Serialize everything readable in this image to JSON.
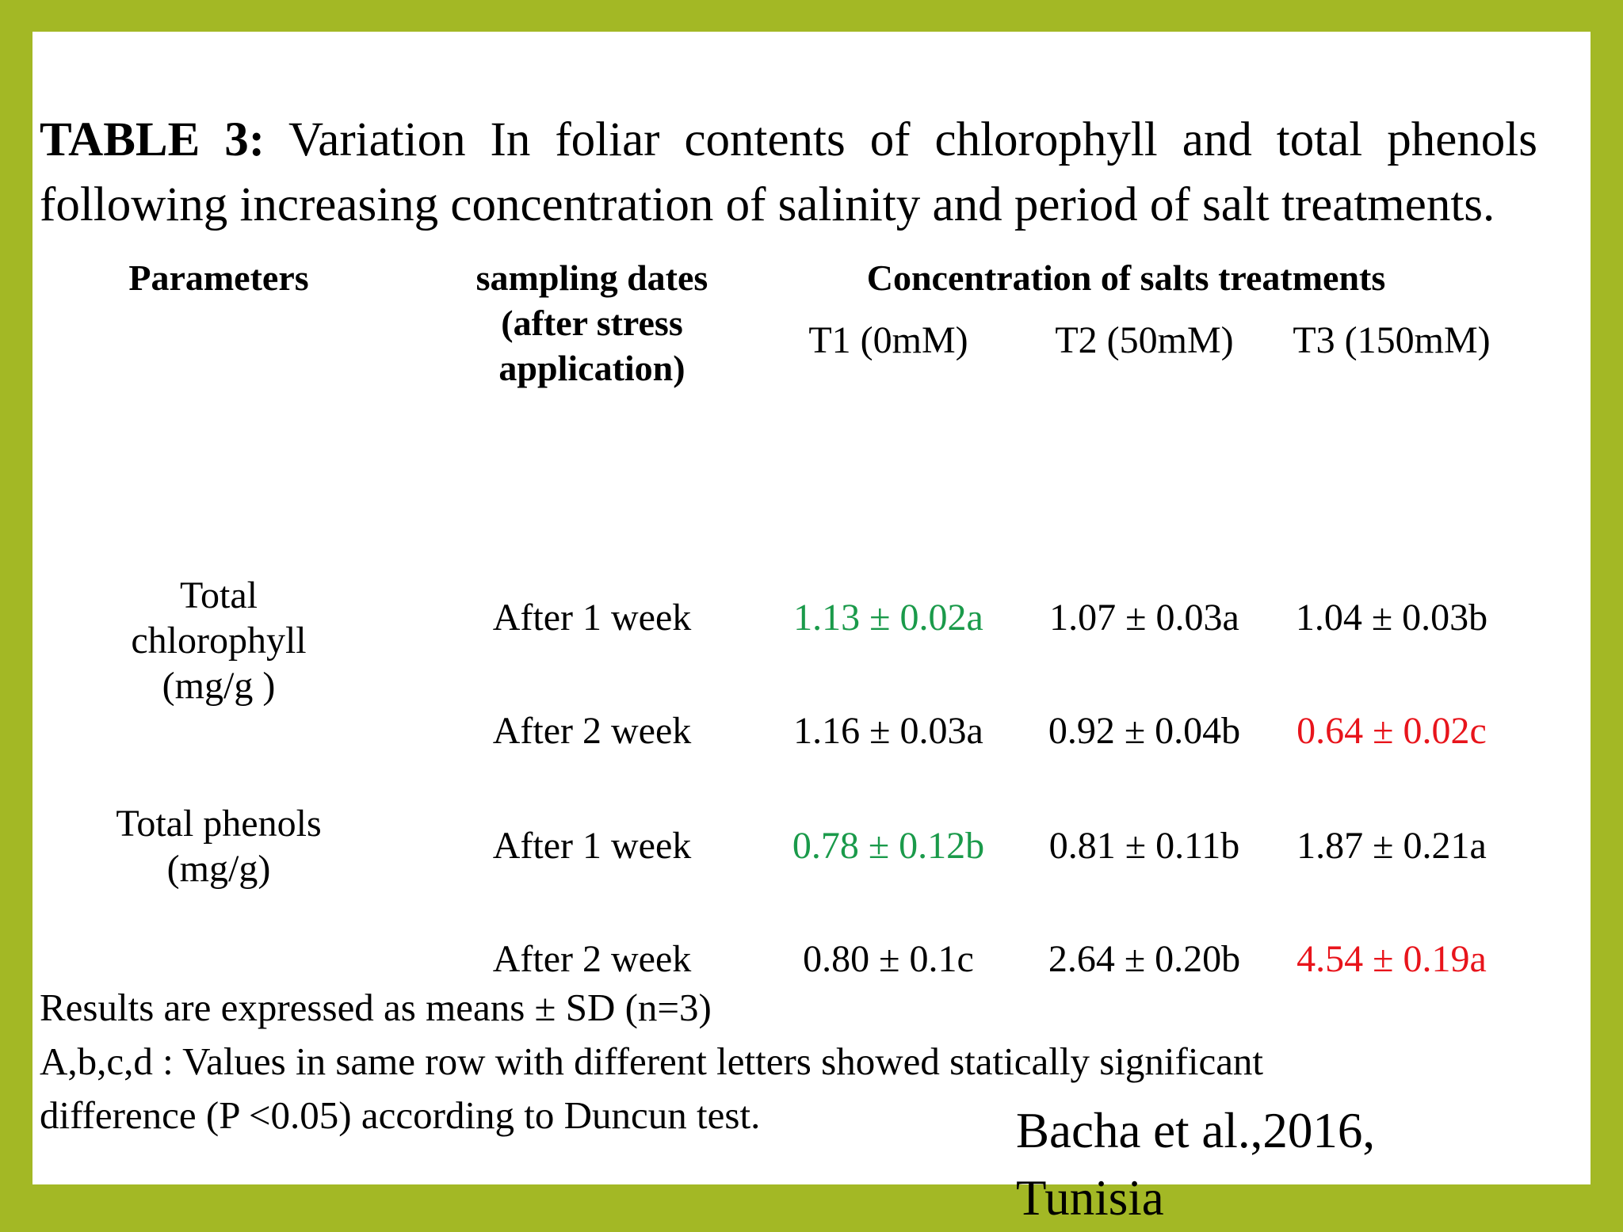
{
  "colors": {
    "frame": "#a3b825",
    "highlight_low": "#1a9a4a",
    "highlight_high": "#e8141b"
  },
  "title": {
    "label": "TABLE 3:",
    "text": " Variation In foliar contents of chlorophyll and total phenols following increasing concentration  of salinity and period of salt treatments."
  },
  "table": {
    "headers": {
      "parameters": "Parameters",
      "sampling_dates": "sampling dates (after stress application)",
      "concentration": "Concentration of salts treatments",
      "treatments": [
        "T1 (0mM)",
        "T2 (50mM)",
        "T3 (150mM)"
      ]
    },
    "groups": [
      {
        "parameter": "Total chlorophyll (mg/g )",
        "rows": [
          {
            "date": "After 1 week",
            "values": [
              "1.13 ± 0.02a",
              "1.07 ± 0.03a",
              "1.04 ± 0.03b"
            ],
            "highlights": [
              "low",
              "",
              ""
            ]
          },
          {
            "date": "After 2 week",
            "values": [
              "1.16 ± 0.03a",
              "0.92 ± 0.04b",
              "0.64 ± 0.02c"
            ],
            "highlights": [
              "",
              "",
              "high"
            ]
          }
        ]
      },
      {
        "parameter": "Total phenols (mg/g)",
        "rows": [
          {
            "date": "After 1 week",
            "values": [
              "0.78 ± 0.12b",
              "0.81 ± 0.11b",
              "1.87 ± 0.21a"
            ],
            "highlights": [
              "low",
              "",
              ""
            ]
          },
          {
            "date": "After 2 week",
            "values": [
              "0.80 ± 0.1c",
              "2.64 ± 0.20b",
              "4.54 ± 0.19a"
            ],
            "highlights": [
              "",
              "",
              "high"
            ]
          }
        ]
      }
    ]
  },
  "notes": [
    "Results are expressed as means ± SD (n=3)",
    "A,b,c,d : Values in same row with different letters showed statically significant",
    "difference (P <0.05) according to Duncun test."
  ],
  "citation": "Bacha et al.,2016, Tunisia"
}
